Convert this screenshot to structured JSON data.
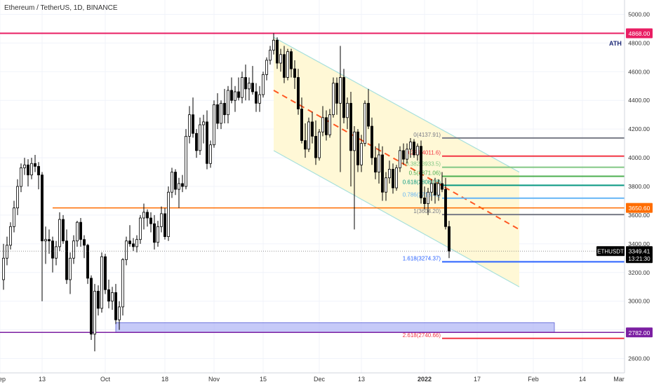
{
  "header": {
    "title": "Ethereum / TetherUS, 1D, BINANCE"
  },
  "annotations": {
    "ath": "ATH"
  },
  "colors": {
    "up": "#ffffff",
    "down": "#000000",
    "ath_line": "#e91e63",
    "level_3650": "#ff6d00",
    "support_2782": "#7b1fa2",
    "channel_fill": "#fff8d6",
    "channel_edge": "#a8e0dc",
    "mid_dash": "#ff5722",
    "zone": "#b3b8f5"
  },
  "chart_data": {
    "type": "candlestick",
    "title": "Ethereum / TetherUS, 1D, BINANCE",
    "symbol": "ETHUSDT",
    "ylim": [
      2500,
      5100
    ],
    "xlim": [
      0,
      178
    ],
    "y_ticks": [
      "2600.00",
      "2800.00",
      "3000.00",
      "3200.00",
      "3400.00",
      "3600.00",
      "3800.00",
      "4000.00",
      "4200.00",
      "4400.00",
      "4600.00",
      "4800.00",
      "5000.00"
    ],
    "y_tick_values": [
      2600,
      2800,
      3000,
      3200,
      3400,
      3600,
      3800,
      4000,
      4200,
      4400,
      4600,
      4800,
      5000
    ],
    "x_ticks": [
      "Sep",
      "13",
      "Oct",
      "18",
      "Nov",
      "15",
      "Dec",
      "13",
      "2022",
      "17",
      "Feb",
      "14",
      "Mar"
    ],
    "x_tick_days": [
      0,
      12,
      30,
      47,
      61,
      75,
      91,
      103,
      121,
      136,
      152,
      166,
      180
    ],
    "candles_ohlc": [
      [
        3150,
        3400,
        3080,
        3300
      ],
      [
        3300,
        3450,
        3250,
        3390
      ],
      [
        3390,
        3550,
        3360,
        3520
      ],
      [
        3520,
        3700,
        3480,
        3650
      ],
      [
        3650,
        3850,
        3600,
        3800
      ],
      [
        3800,
        3960,
        3760,
        3930
      ],
      [
        3930,
        4000,
        3880,
        3950
      ],
      [
        3950,
        3990,
        3800,
        3880
      ],
      [
        3880,
        4000,
        3850,
        3960
      ],
      [
        3960,
        4020,
        3900,
        3940
      ],
      [
        3940,
        3970,
        3780,
        3880
      ],
      [
        3880,
        3900,
        3000,
        3420
      ],
      [
        3420,
        3520,
        3260,
        3430
      ],
      [
        3430,
        3500,
        3330,
        3420
      ],
      [
        3420,
        3450,
        3200,
        3300
      ],
      [
        3300,
        3420,
        3250,
        3380
      ],
      [
        3380,
        3620,
        3350,
        3570
      ],
      [
        3570,
        3600,
        3400,
        3420
      ],
      [
        3420,
        3500,
        3120,
        3150
      ],
      [
        3150,
        3340,
        3050,
        3300
      ],
      [
        3300,
        3460,
        3260,
        3420
      ],
      [
        3420,
        3560,
        3380,
        3550
      ],
      [
        3550,
        3580,
        3380,
        3430
      ],
      [
        3430,
        3460,
        3300,
        3390
      ],
      [
        3390,
        3400,
        3120,
        3160
      ],
      [
        3160,
        3180,
        2730,
        2770
      ],
      [
        2770,
        3120,
        2650,
        3070
      ],
      [
        3070,
        3110,
        2900,
        2950
      ],
      [
        2950,
        3340,
        2920,
        3310
      ],
      [
        3310,
        3330,
        3050,
        3080
      ],
      [
        3080,
        3150,
        2950,
        3000
      ],
      [
        3000,
        3100,
        2940,
        3060
      ],
      [
        3060,
        3120,
        2840,
        2870
      ],
      [
        2870,
        3000,
        2800,
        2960
      ],
      [
        2960,
        3300,
        2900,
        3290
      ],
      [
        3290,
        3450,
        3250,
        3420
      ],
      [
        3420,
        3530,
        3380,
        3400
      ],
      [
        3400,
        3440,
        3350,
        3380
      ],
      [
        3380,
        3460,
        3340,
        3430
      ],
      [
        3430,
        3600,
        3400,
        3580
      ],
      [
        3580,
        3680,
        3500,
        3620
      ],
      [
        3620,
        3640,
        3520,
        3580
      ],
      [
        3580,
        3620,
        3480,
        3540
      ],
      [
        3540,
        3600,
        3360,
        3410
      ],
      [
        3410,
        3560,
        3380,
        3520
      ],
      [
        3520,
        3660,
        3480,
        3610
      ],
      [
        3610,
        3650,
        3430,
        3450
      ],
      [
        3450,
        3800,
        3420,
        3760
      ],
      [
        3760,
        3930,
        3720,
        3900
      ],
      [
        3900,
        3920,
        3740,
        3780
      ],
      [
        3780,
        3860,
        3650,
        3820
      ],
      [
        3820,
        3880,
        3760,
        3800
      ],
      [
        3800,
        4200,
        3780,
        4150
      ],
      [
        4150,
        4360,
        4100,
        4300
      ],
      [
        4300,
        4420,
        4140,
        4170
      ],
      [
        4170,
        4200,
        4000,
        4050
      ],
      [
        4050,
        4280,
        4020,
        4230
      ],
      [
        4230,
        4300,
        4100,
        4250
      ],
      [
        4250,
        4330,
        3920,
        3960
      ],
      [
        3960,
        4120,
        3930,
        4090
      ],
      [
        4090,
        4400,
        4070,
        4370
      ],
      [
        4370,
        4450,
        4200,
        4240
      ],
      [
        4240,
        4400,
        4200,
        4380
      ],
      [
        4380,
        4480,
        4240,
        4300
      ],
      [
        4300,
        4500,
        4240,
        4470
      ],
      [
        4470,
        4560,
        4380,
        4400
      ],
      [
        4400,
        4500,
        4320,
        4460
      ],
      [
        4460,
        4560,
        4400,
        4420
      ],
      [
        4420,
        4600,
        4380,
        4560
      ],
      [
        4560,
        4650,
        4400,
        4480
      ],
      [
        4480,
        4560,
        4400,
        4520
      ],
      [
        4520,
        4640,
        4440,
        4460
      ],
      [
        4460,
        4520,
        4320,
        4380
      ],
      [
        4380,
        4500,
        4320,
        4440
      ],
      [
        4440,
        4600,
        4420,
        4580
      ],
      [
        4580,
        4700,
        4540,
        4680
      ],
      [
        4680,
        4780,
        4650,
        4750
      ],
      [
        4750,
        4868,
        4720,
        4820
      ],
      [
        4820,
        4840,
        4620,
        4660
      ],
      [
        4660,
        4760,
        4600,
        4720
      ],
      [
        4720,
        4780,
        4520,
        4560
      ],
      [
        4560,
        4760,
        4540,
        4740
      ],
      [
        4740,
        4760,
        4560,
        4620
      ],
      [
        4620,
        4680,
        4480,
        4560
      ],
      [
        4560,
        4620,
        4300,
        4340
      ],
      [
        4340,
        4420,
        4100,
        4120
      ],
      [
        4120,
        4240,
        4000,
        4060
      ],
      [
        4060,
        4280,
        4040,
        4250
      ],
      [
        4250,
        4320,
        4100,
        4150
      ],
      [
        4150,
        4260,
        3950,
        4000
      ],
      [
        4000,
        4200,
        3980,
        4180
      ],
      [
        4180,
        4360,
        4150,
        4280
      ],
      [
        4280,
        4330,
        4120,
        4160
      ],
      [
        4160,
        4340,
        4140,
        4300
      ],
      [
        4300,
        4560,
        4280,
        4520
      ],
      [
        4520,
        4560,
        4300,
        4380
      ],
      [
        4380,
        4780,
        3900,
        4560
      ],
      [
        4560,
        4620,
        4240,
        4280
      ],
      [
        4280,
        4420,
        4200,
        4380
      ],
      [
        4380,
        4460,
        3800,
        4050
      ],
      [
        4050,
        4220,
        3500,
        4180
      ],
      [
        4180,
        4200,
        3900,
        3950
      ],
      [
        3950,
        4160,
        3900,
        4100
      ],
      [
        4100,
        4400,
        4080,
        4380
      ],
      [
        4380,
        4480,
        4200,
        4220
      ],
      [
        4220,
        4280,
        3950,
        4000
      ],
      [
        4000,
        4080,
        3850,
        3900
      ],
      [
        3900,
        4100,
        3820,
        4020
      ],
      [
        4020,
        4080,
        3700,
        3760
      ],
      [
        3760,
        3900,
        3700,
        3860
      ],
      [
        3860,
        3980,
        3820,
        3920
      ],
      [
        3920,
        3960,
        3750,
        3790
      ],
      [
        3790,
        3950,
        3770,
        3930
      ],
      [
        3930,
        4080,
        3900,
        4050
      ],
      [
        4050,
        4100,
        3950,
        3990
      ],
      [
        3990,
        4100,
        3960,
        4060
      ],
      [
        4060,
        4137,
        4000,
        4110
      ],
      [
        4110,
        4130,
        4000,
        4020
      ],
      [
        4020,
        4100,
        3980,
        4080
      ],
      [
        4080,
        4120,
        3680,
        3720
      ],
      [
        3720,
        3800,
        3640,
        3680
      ],
      [
        3680,
        3790,
        3600,
        3760
      ],
      [
        3760,
        3850,
        3700,
        3820
      ],
      [
        3820,
        3860,
        3680,
        3740
      ],
      [
        3740,
        3850,
        3700,
        3820
      ],
      [
        3820,
        3900,
        3760,
        3780
      ],
      [
        3780,
        3860,
        3500,
        3520
      ],
      [
        3520,
        3560,
        3300,
        3349
      ]
    ],
    "fibonacci": [
      {
        "label": "0(4137.91)",
        "value": 4137.91,
        "color": "#787b86"
      },
      {
        "label": "0.236(4011.6)",
        "value": 4011.6,
        "color": "#f23645"
      },
      {
        "label": "0.382(3933.5)",
        "value": 3933.5,
        "color": "#81c784"
      },
      {
        "label": "0.5(3871.06)",
        "value": 3871.06,
        "color": "#4caf50"
      },
      {
        "label": "0.618(3808.08)",
        "value": 3808.08,
        "color": "#089981"
      },
      {
        "label": "0.786(3718.41)",
        "value": 3718.41,
        "color": "#64b5f6"
      },
      {
        "label": "1(3604.20)",
        "value": 3604.2,
        "color": "#787b86"
      },
      {
        "label": "1.618(3274.37)",
        "value": 3274.37,
        "color": "#2962ff"
      },
      {
        "label": "2.618(2740.66)",
        "value": 2740.66,
        "color": "#f23645"
      }
    ],
    "horizontal_levels": [
      {
        "label": "4868.00",
        "value": 4868,
        "color": "#e91e63"
      },
      {
        "label": "3650.60",
        "value": 3650.6,
        "color": "#ff6d00"
      },
      {
        "label": "2782.00",
        "value": 2782,
        "color": "#7b1fa2"
      }
    ],
    "last_price": {
      "symbol": "ETHUSDT",
      "value": "3349.41",
      "countdown": "13:21:30",
      "price": 3349.41
    },
    "channel": {
      "upper": [
        [
          78,
          4840
        ],
        [
          148,
          3900
        ]
      ],
      "lower": [
        [
          78,
          4050
        ],
        [
          148,
          3100
        ]
      ],
      "x_end": 148
    },
    "midline": {
      "from": [
        78,
        4470
      ],
      "to": [
        148,
        3500
      ]
    },
    "zone": {
      "x_from": 33,
      "x_to": 158,
      "y_from": 2782,
      "y_to": 2850
    },
    "fib_x_range": [
      126,
      198
    ]
  }
}
